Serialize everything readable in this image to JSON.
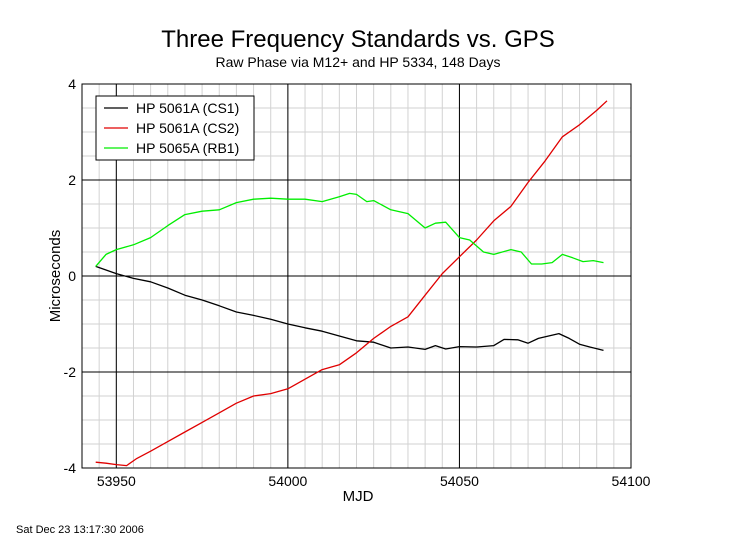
{
  "chart_data": {
    "type": "line",
    "title": "Three Frequency Standards vs. GPS",
    "subtitle": "Raw Phase via M12+ and HP 5334, 148 Days",
    "xlabel": "MJD",
    "ylabel": "Microseconds",
    "xlim": [
      53940,
      54100
    ],
    "ylim": [
      -4,
      4
    ],
    "x_ticks": [
      53950,
      54000,
      54050,
      54100
    ],
    "y_ticks": [
      -4,
      -2,
      0,
      2,
      4
    ],
    "x_minor_step": 5,
    "y_minor_step": 0.5,
    "grid": true,
    "legend_position": "top-left",
    "series": [
      {
        "name": "HP 5061A (CS1)",
        "color": "#000000",
        "x": [
          53944,
          53950,
          53955,
          53960,
          53965,
          53970,
          53975,
          53980,
          53985,
          53990,
          53995,
          54000,
          54005,
          54010,
          54015,
          54020,
          54025,
          54030,
          54035,
          54040,
          54043,
          54046,
          54050,
          54055,
          54060,
          54063,
          54067,
          54070,
          54073,
          54076,
          54079,
          54082,
          54085,
          54088,
          54092
        ],
        "y": [
          0.2,
          0.05,
          -0.05,
          -0.12,
          -0.25,
          -0.4,
          -0.5,
          -0.62,
          -0.75,
          -0.82,
          -0.9,
          -1.0,
          -1.08,
          -1.15,
          -1.25,
          -1.35,
          -1.38,
          -1.5,
          -1.48,
          -1.53,
          -1.45,
          -1.52,
          -1.47,
          -1.48,
          -1.45,
          -1.32,
          -1.33,
          -1.4,
          -1.3,
          -1.25,
          -1.2,
          -1.3,
          -1.42,
          -1.48,
          -1.55
        ]
      },
      {
        "name": "HP 5061A (CS2)",
        "color": "#e00000",
        "x": [
          53944,
          53947,
          53950,
          53953,
          53956,
          53960,
          53965,
          53970,
          53975,
          53980,
          53985,
          53990,
          53995,
          54000,
          54005,
          54010,
          54015,
          54020,
          54025,
          54030,
          54035,
          54040,
          54045,
          54050,
          54055,
          54060,
          54065,
          54070,
          54075,
          54080,
          54085,
          54090,
          54093
        ],
        "y": [
          -3.88,
          -3.9,
          -3.93,
          -3.95,
          -3.8,
          -3.65,
          -3.45,
          -3.25,
          -3.05,
          -2.85,
          -2.65,
          -2.5,
          -2.45,
          -2.35,
          -2.15,
          -1.95,
          -1.85,
          -1.6,
          -1.3,
          -1.05,
          -0.85,
          -0.4,
          0.05,
          0.4,
          0.75,
          1.15,
          1.45,
          1.95,
          2.4,
          2.9,
          3.15,
          3.45,
          3.65
        ]
      },
      {
        "name": "HP 5065A (RB1)",
        "color": "#00ee00",
        "x": [
          53944,
          53947,
          53950,
          53955,
          53960,
          53965,
          53970,
          53975,
          53980,
          53985,
          53990,
          53995,
          54000,
          54005,
          54010,
          54015,
          54018,
          54020,
          54023,
          54025,
          54030,
          54035,
          54040,
          54043,
          54046,
          54050,
          54053,
          54057,
          54060,
          54065,
          54068,
          54071,
          54074,
          54077,
          54080,
          54083,
          54086,
          54089,
          54092
        ],
        "y": [
          0.2,
          0.45,
          0.55,
          0.65,
          0.8,
          1.05,
          1.28,
          1.35,
          1.38,
          1.53,
          1.6,
          1.62,
          1.6,
          1.6,
          1.55,
          1.65,
          1.72,
          1.7,
          1.55,
          1.57,
          1.38,
          1.3,
          1.0,
          1.1,
          1.12,
          0.8,
          0.75,
          0.5,
          0.45,
          0.55,
          0.5,
          0.25,
          0.25,
          0.28,
          0.45,
          0.38,
          0.3,
          0.32,
          0.28
        ]
      }
    ]
  },
  "footer": {
    "timestamp": "Sat Dec 23 13:17:30 2006"
  }
}
